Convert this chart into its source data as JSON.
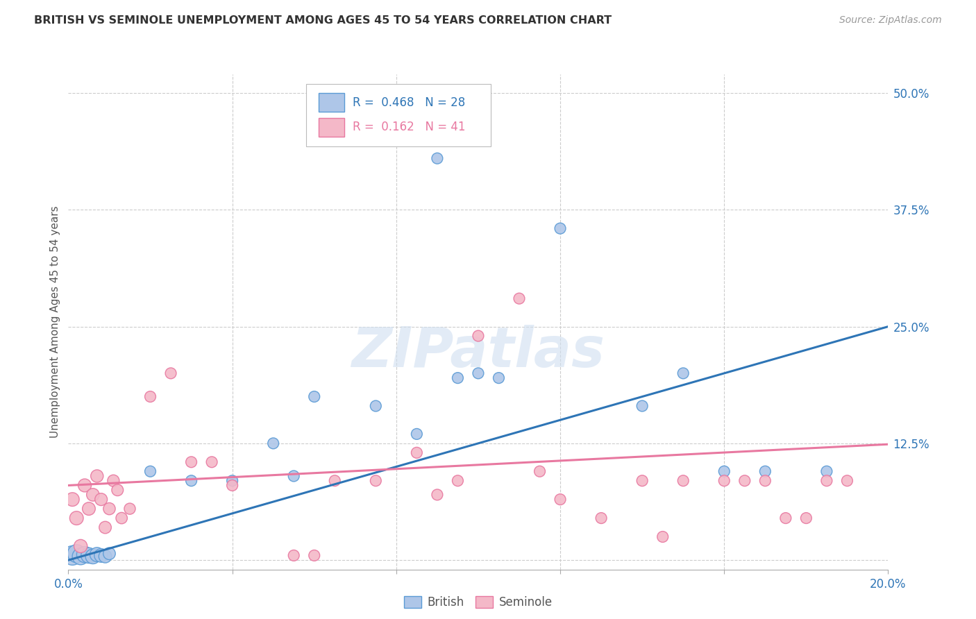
{
  "title": "BRITISH VS SEMINOLE UNEMPLOYMENT AMONG AGES 45 TO 54 YEARS CORRELATION CHART",
  "source": "Source: ZipAtlas.com",
  "ylabel": "Unemployment Among Ages 45 to 54 years",
  "xlim": [
    0.0,
    0.2
  ],
  "ylim": [
    -0.01,
    0.52
  ],
  "ytick_positions": [
    0.0,
    0.125,
    0.25,
    0.375,
    0.5
  ],
  "yticklabels": [
    "",
    "12.5%",
    "25.0%",
    "37.5%",
    "50.0%"
  ],
  "british_color": "#aec6e8",
  "british_edge_color": "#5b9bd5",
  "seminole_color": "#f4b8c8",
  "seminole_edge_color": "#e878a0",
  "trend_british_color": "#2e75b6",
  "trend_seminole_color": "#e878a0",
  "R_british": 0.468,
  "N_british": 28,
  "R_seminole": 0.162,
  "N_seminole": 41,
  "british_x": [
    0.001,
    0.002,
    0.003,
    0.004,
    0.005,
    0.006,
    0.007,
    0.008,
    0.009,
    0.01,
    0.02,
    0.03,
    0.04,
    0.05,
    0.055,
    0.06,
    0.075,
    0.085,
    0.09,
    0.095,
    0.1,
    0.105,
    0.12,
    0.14,
    0.15,
    0.16,
    0.17,
    0.185
  ],
  "british_y": [
    0.005,
    0.007,
    0.004,
    0.006,
    0.005,
    0.004,
    0.006,
    0.005,
    0.004,
    0.007,
    0.095,
    0.085,
    0.085,
    0.125,
    0.09,
    0.175,
    0.165,
    0.135,
    0.43,
    0.195,
    0.2,
    0.195,
    0.355,
    0.165,
    0.2,
    0.095,
    0.095,
    0.095
  ],
  "british_sizes": [
    400,
    350,
    300,
    280,
    260,
    240,
    220,
    200,
    180,
    160,
    130,
    130,
    130,
    130,
    130,
    130,
    130,
    130,
    130,
    130,
    130,
    130,
    130,
    130,
    130,
    130,
    130,
    130
  ],
  "seminole_x": [
    0.001,
    0.002,
    0.003,
    0.004,
    0.005,
    0.006,
    0.007,
    0.008,
    0.009,
    0.01,
    0.011,
    0.012,
    0.013,
    0.015,
    0.02,
    0.025,
    0.03,
    0.035,
    0.04,
    0.055,
    0.06,
    0.065,
    0.075,
    0.085,
    0.09,
    0.095,
    0.1,
    0.11,
    0.115,
    0.12,
    0.13,
    0.14,
    0.145,
    0.15,
    0.16,
    0.165,
    0.17,
    0.175,
    0.18,
    0.185,
    0.19
  ],
  "seminole_y": [
    0.065,
    0.045,
    0.015,
    0.08,
    0.055,
    0.07,
    0.09,
    0.065,
    0.035,
    0.055,
    0.085,
    0.075,
    0.045,
    0.055,
    0.175,
    0.2,
    0.105,
    0.105,
    0.08,
    0.005,
    0.005,
    0.085,
    0.085,
    0.115,
    0.07,
    0.085,
    0.24,
    0.28,
    0.095,
    0.065,
    0.045,
    0.085,
    0.025,
    0.085,
    0.085,
    0.085,
    0.085,
    0.045,
    0.045,
    0.085,
    0.085
  ],
  "seminole_sizes": [
    200,
    200,
    190,
    185,
    180,
    175,
    170,
    165,
    160,
    155,
    150,
    145,
    140,
    135,
    130,
    130,
    130,
    130,
    130,
    130,
    130,
    130,
    130,
    130,
    130,
    130,
    130,
    130,
    130,
    130,
    130,
    130,
    130,
    130,
    130,
    130,
    130,
    130,
    130,
    130,
    130
  ],
  "background_color": "#ffffff",
  "grid_color": "#cccccc",
  "watermark_text": "ZIPatlas",
  "watermark_color": "#d0dff0",
  "watermark_alpha": 0.6,
  "trend_british_intercept": 0.0,
  "trend_british_slope": 1.25,
  "trend_seminole_intercept": 0.08,
  "trend_seminole_slope": 0.22
}
